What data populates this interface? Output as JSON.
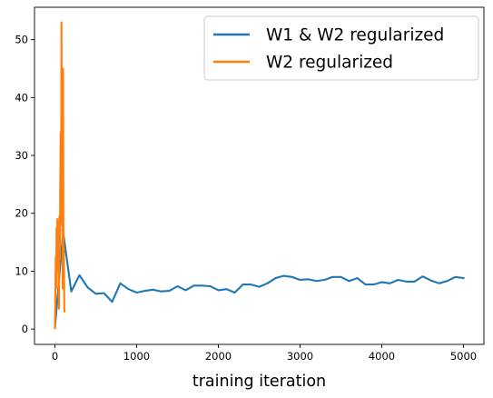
{
  "chart_data": {
    "type": "line",
    "title": "",
    "xlabel": "training iteration",
    "ylabel": "",
    "xlim": [
      -250,
      5250
    ],
    "ylim": [
      -2.65,
      55.6
    ],
    "xticks": [
      0,
      1000,
      2000,
      3000,
      4000,
      5000
    ],
    "yticks": [
      0,
      10,
      20,
      30,
      40,
      50
    ],
    "grid": false,
    "legend_position": "top-right",
    "series": [
      {
        "name": "W1 & W2 regularized",
        "color": "#1f77b4",
        "x": [
          0,
          100,
          200,
          300,
          400,
          500,
          600,
          700,
          800,
          900,
          1000,
          1100,
          1200,
          1300,
          1400,
          1500,
          1600,
          1700,
          1800,
          1900,
          2000,
          2100,
          2200,
          2300,
          2400,
          2500,
          2600,
          2700,
          2800,
          2900,
          3000,
          3100,
          3200,
          3300,
          3400,
          3500,
          3600,
          3700,
          3800,
          3900,
          4000,
          4100,
          4200,
          4300,
          4400,
          4500,
          4600,
          4700,
          4800,
          4900,
          5000
        ],
        "y": [
          0.2,
          16.8,
          6.5,
          9.3,
          7.2,
          6.1,
          6.2,
          4.7,
          7.9,
          6.9,
          6.3,
          6.6,
          6.8,
          6.5,
          6.6,
          7.4,
          6.7,
          7.5,
          7.5,
          7.4,
          6.7,
          6.9,
          6.3,
          7.7,
          7.7,
          7.3,
          7.9,
          8.8,
          9.2,
          9.0,
          8.5,
          8.6,
          8.3,
          8.5,
          9.0,
          9.0,
          8.3,
          8.8,
          7.7,
          7.7,
          8.1,
          7.9,
          8.5,
          8.2,
          8.2,
          9.1,
          8.4,
          7.9,
          8.3,
          9.0,
          8.8
        ]
      },
      {
        "name": "W2 regularized",
        "color": "#ff7f0e",
        "x": [
          0,
          5,
          10,
          15,
          20,
          25,
          30,
          35,
          40,
          45,
          50,
          55,
          60,
          65,
          70,
          75,
          80,
          85,
          90,
          95,
          100,
          105,
          110,
          115,
          120
        ],
        "y": [
          0.2,
          5.0,
          12.5,
          7.0,
          17.5,
          12.0,
          19.0,
          10.0,
          18.5,
          6.0,
          3.5,
          19.5,
          12.0,
          25.0,
          34.0,
          18.0,
          53.0,
          28.0,
          44.0,
          7.0,
          45.0,
          10.0,
          14.0,
          3.0,
          3.2
        ]
      }
    ]
  }
}
